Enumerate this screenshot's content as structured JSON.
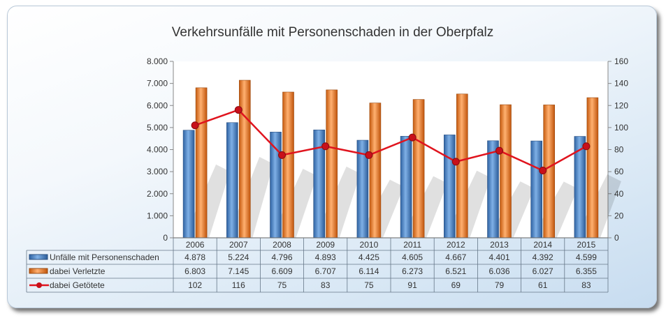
{
  "chart_data": {
    "type": "bar",
    "title": "Verkehrsunfälle mit Personenschaden in der Oberpfalz",
    "categories": [
      "2006",
      "2007",
      "2008",
      "2009",
      "2010",
      "2011",
      "2012",
      "2013",
      "2014",
      "2015"
    ],
    "series": [
      {
        "name": "Unfälle mit Personenschaden",
        "type": "bar",
        "axis": "left",
        "color": "#4a86c8",
        "values": [
          4878,
          5224,
          4796,
          4893,
          4425,
          4605,
          4667,
          4401,
          4392,
          4599
        ],
        "labels": [
          "4.878",
          "5.224",
          "4.796",
          "4.893",
          "4.425",
          "4.605",
          "4.667",
          "4.401",
          "4.392",
          "4.599"
        ]
      },
      {
        "name": "dabei Verletzte",
        "type": "bar",
        "axis": "left",
        "color": "#f07f2a",
        "values": [
          6803,
          7145,
          6609,
          6707,
          6114,
          6273,
          6521,
          6036,
          6027,
          6355
        ],
        "labels": [
          "6.803",
          "7.145",
          "6.609",
          "6.707",
          "6.114",
          "6.273",
          "6.521",
          "6.036",
          "6.027",
          "6.355"
        ]
      },
      {
        "name": "dabei Getötete",
        "type": "line",
        "axis": "right",
        "color": "#e0141e",
        "values": [
          102,
          116,
          75,
          83,
          75,
          91,
          69,
          79,
          61,
          83
        ],
        "labels": [
          "102",
          "116",
          "75",
          "83",
          "75",
          "91",
          "69",
          "79",
          "61",
          "83"
        ]
      }
    ],
    "y_left": {
      "range": [
        0,
        8000
      ],
      "ticks": [
        "0",
        "1.000",
        "2.000",
        "3.000",
        "4.000",
        "5.000",
        "6.000",
        "7.000",
        "8.000"
      ]
    },
    "y_right": {
      "range": [
        0,
        160
      ],
      "ticks": [
        "0",
        "20",
        "40",
        "60",
        "80",
        "100",
        "120",
        "140",
        "160"
      ]
    },
    "grid": false,
    "legend": "data-table-bottom"
  }
}
